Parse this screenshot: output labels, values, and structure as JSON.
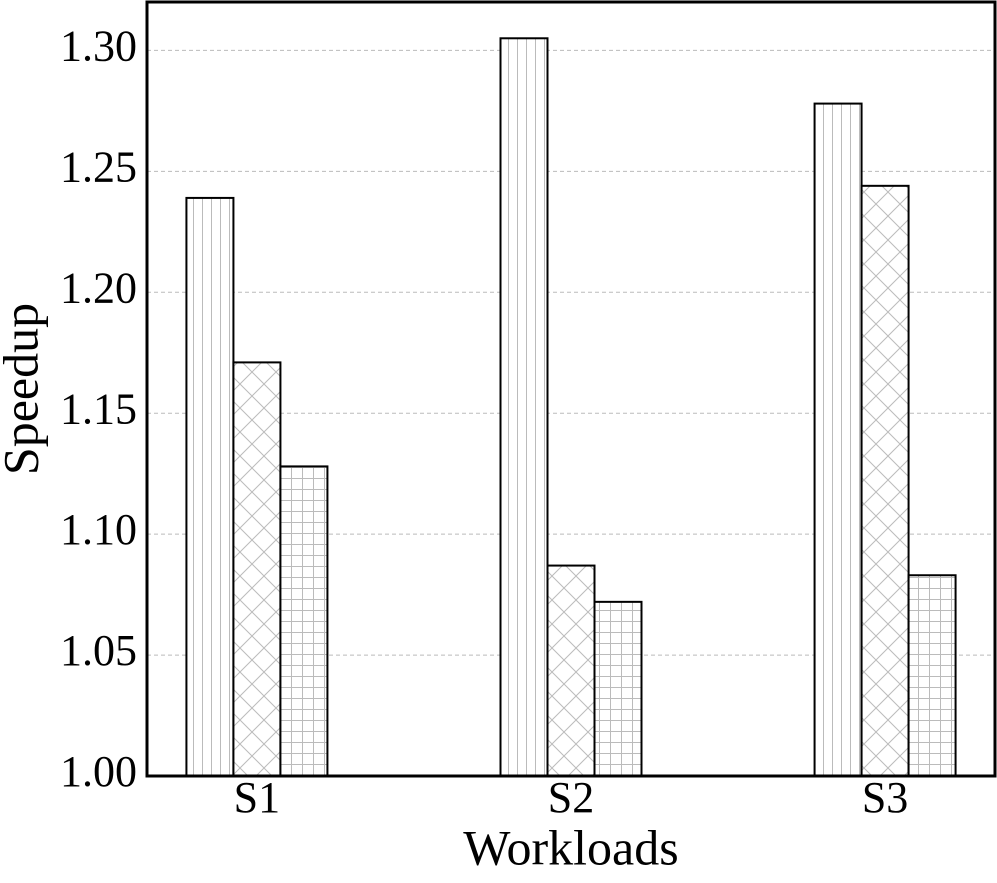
{
  "chart_data": {
    "type": "bar",
    "x_label": "Workloads",
    "y_label": "Speedup",
    "categories": [
      "S1",
      "S2",
      "S3"
    ],
    "series": [
      {
        "color": "#ffffff",
        "hatch": "|",
        "values": [
          1.239,
          1.305,
          1.278
        ]
      },
      {
        "color": "#ffffff",
        "hatch": "x",
        "values": [
          1.171,
          1.087,
          1.244
        ]
      },
      {
        "color": "#ffffff",
        "hatch": "+",
        "values": [
          1.128,
          1.072,
          1.083
        ]
      }
    ],
    "ylim": [
      1.0,
      1.32
    ],
    "yticks": [
      {
        "value": 1.0,
        "label": "1.00"
      },
      {
        "value": 1.05,
        "label": "1.05"
      },
      {
        "value": 1.1,
        "label": "1.10"
      },
      {
        "value": 1.15,
        "label": "1.15"
      },
      {
        "value": 1.2,
        "label": "1.20"
      },
      {
        "value": 1.25,
        "label": "1.25"
      },
      {
        "value": 1.3,
        "label": "1.30"
      }
    ],
    "grid": true
  }
}
